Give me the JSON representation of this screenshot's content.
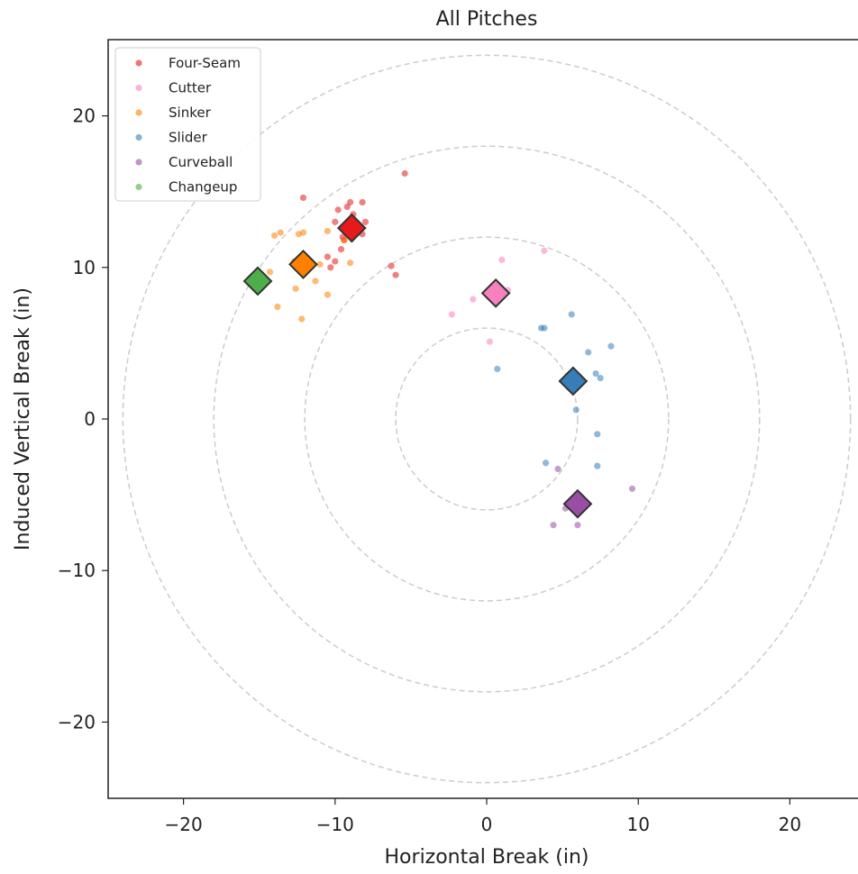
{
  "chart_data": {
    "type": "scatter",
    "title": "All Pitches",
    "xlabel": "Horizontal Break (in)",
    "ylabel": "Induced Vertical Break (in)",
    "xlim": [
      -25,
      25
    ],
    "ylim": [
      -25,
      25
    ],
    "xticks": [
      -20,
      -10,
      0,
      10,
      20
    ],
    "yticks": [
      -20,
      -10,
      0,
      10,
      20
    ],
    "tick_labels_x": [
      "−20",
      "−10",
      "0",
      "10",
      "20"
    ],
    "tick_labels_y": [
      "−20",
      "−10",
      "0",
      "10",
      "20"
    ],
    "reference_circles_radius": [
      6,
      12,
      18,
      24
    ],
    "grid": false,
    "legend_position": "top-left",
    "series": [
      {
        "name": "Four-Seam",
        "color": "#e41a1c",
        "points": [
          [
            -12.1,
            14.6
          ],
          [
            -9.0,
            14.3
          ],
          [
            -8.2,
            14.3
          ],
          [
            -9.2,
            14.0
          ],
          [
            -9.8,
            13.8
          ],
          [
            -8.8,
            13.5
          ],
          [
            -10.0,
            13.0
          ],
          [
            -8.0,
            13.0
          ],
          [
            -8.8,
            12.6
          ],
          [
            -9.5,
            12.0
          ],
          [
            -8.2,
            12.2
          ],
          [
            -9.6,
            11.2
          ],
          [
            -10.5,
            10.7
          ],
          [
            -10.0,
            10.4
          ],
          [
            -10.3,
            10.0
          ],
          [
            -5.4,
            16.2
          ],
          [
            -6.3,
            10.1
          ],
          [
            -6.0,
            9.5
          ],
          [
            -9.2,
            12.8
          ],
          [
            -9.4,
            11.8
          ]
        ],
        "mean": [
          -8.9,
          12.6
        ]
      },
      {
        "name": "Cutter",
        "color": "#f781bf",
        "points": [
          [
            1.0,
            10.5
          ],
          [
            3.8,
            11.1
          ],
          [
            1.4,
            8.5
          ],
          [
            -0.9,
            7.9
          ],
          [
            -2.3,
            6.9
          ],
          [
            0.2,
            5.1
          ]
        ],
        "mean": [
          0.6,
          8.3
        ]
      },
      {
        "name": "Sinker",
        "color": "#ff7f00",
        "points": [
          [
            -14.0,
            12.1
          ],
          [
            -13.6,
            12.3
          ],
          [
            -12.4,
            12.2
          ],
          [
            -12.1,
            12.3
          ],
          [
            -10.5,
            12.4
          ],
          [
            -9.4,
            11.8
          ],
          [
            -14.3,
            9.7
          ],
          [
            -12.7,
            10.4
          ],
          [
            -11.0,
            10.2
          ],
          [
            -9.0,
            10.3
          ],
          [
            -11.3,
            9.1
          ],
          [
            -12.6,
            8.6
          ],
          [
            -10.5,
            8.2
          ],
          [
            -13.8,
            7.4
          ],
          [
            -12.2,
            6.6
          ]
        ],
        "mean": [
          -12.1,
          10.2
        ]
      },
      {
        "name": "Slider",
        "color": "#377eb8",
        "points": [
          [
            5.6,
            6.9
          ],
          [
            3.6,
            6.0
          ],
          [
            3.8,
            6.0
          ],
          [
            8.2,
            4.8
          ],
          [
            6.7,
            4.4
          ],
          [
            7.2,
            3.0
          ],
          [
            7.5,
            2.7
          ],
          [
            0.7,
            3.3
          ],
          [
            5.9,
            0.6
          ],
          [
            7.3,
            -1.0
          ],
          [
            3.9,
            -2.9
          ],
          [
            7.3,
            -3.1
          ]
        ],
        "mean": [
          5.7,
          2.5
        ]
      },
      {
        "name": "Curveball",
        "color": "#984ea3",
        "points": [
          [
            4.7,
            -3.3
          ],
          [
            9.6,
            -4.6
          ],
          [
            5.2,
            -5.9
          ],
          [
            4.4,
            -7.0
          ],
          [
            6.0,
            -7.0
          ]
        ],
        "mean": [
          6.0,
          -5.6
        ]
      },
      {
        "name": "Changeup",
        "color": "#4daf4a",
        "points": [],
        "mean": [
          -15.1,
          9.1
        ]
      }
    ]
  }
}
